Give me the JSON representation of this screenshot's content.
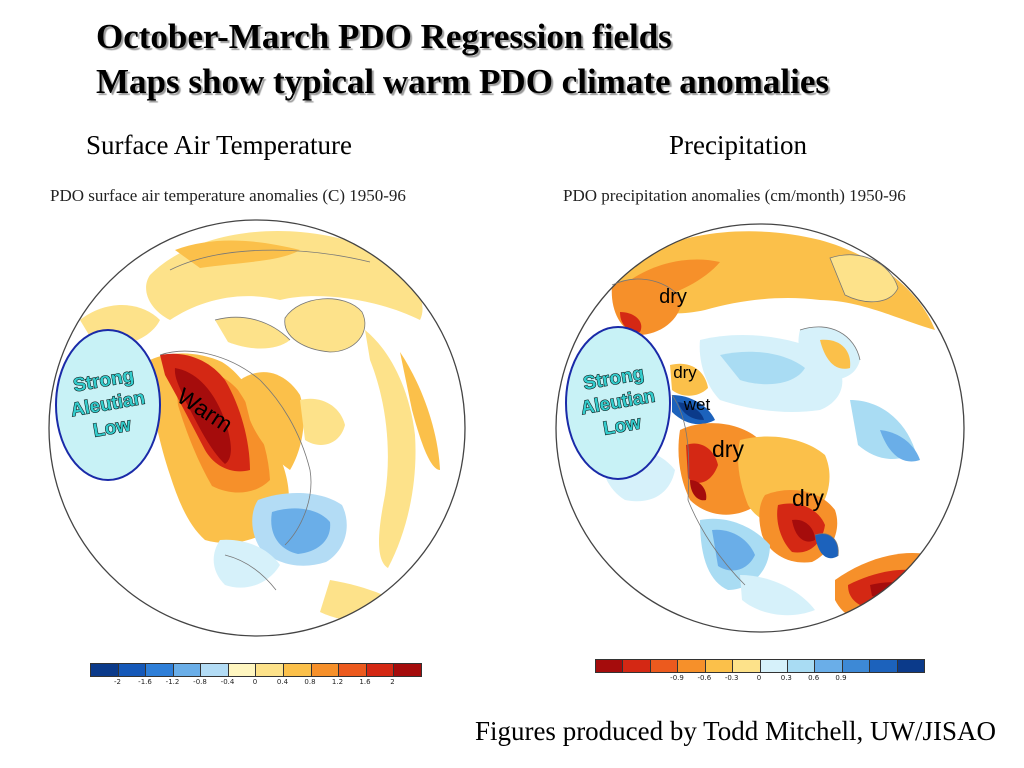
{
  "title": {
    "line1": "October-March PDO Regression fields",
    "line2": "Maps show typical warm PDO climate anomalies"
  },
  "left": {
    "heading": "Surface Air Temperature",
    "caption": "PDO surface air temperature anomalies (C) 1950-96",
    "oval": [
      "Strong",
      "Aleutian",
      "Low"
    ],
    "label_warm": "Warm",
    "colorbar": {
      "colors": [
        "#0b3a8a",
        "#1558b8",
        "#2f7fd8",
        "#6aaee8",
        "#b3dcf5",
        "#fff6c0",
        "#fde28a",
        "#fbc04a",
        "#f6902a",
        "#ec5a1e",
        "#d42814",
        "#a50c0c"
      ],
      "ticks": [
        "-2",
        "-1.6",
        "-1.2",
        "-0.8",
        "-0.4",
        "0",
        "0.4",
        "0.8",
        "1.2",
        "1.6",
        "2"
      ]
    }
  },
  "right": {
    "heading": "Precipitation",
    "caption": "PDO precipitation anomalies (cm/month) 1950-96",
    "oval": [
      "Strong",
      "Aleutian",
      "Low"
    ],
    "labels": {
      "dry_north": "dry",
      "dry_small": "dry",
      "wet": "wet",
      "dry_west": "dry",
      "dry_southeast": "dry"
    },
    "colorbar": {
      "colors": [
        "#a50c0c",
        "#d42814",
        "#ec5a1e",
        "#f6902a",
        "#fbc04a",
        "#fde28a",
        "#d6f1fa",
        "#a9dcf3",
        "#6aaee8",
        "#3d89d6",
        "#1c62bc",
        "#0b3a8a"
      ],
      "ticks": [
        "-0.9",
        "-0.6",
        "-0.3",
        "0",
        "0.3",
        "0.6",
        "0.9"
      ]
    }
  },
  "footer": "Figures produced by Todd Mitchell, UW/JISAO"
}
